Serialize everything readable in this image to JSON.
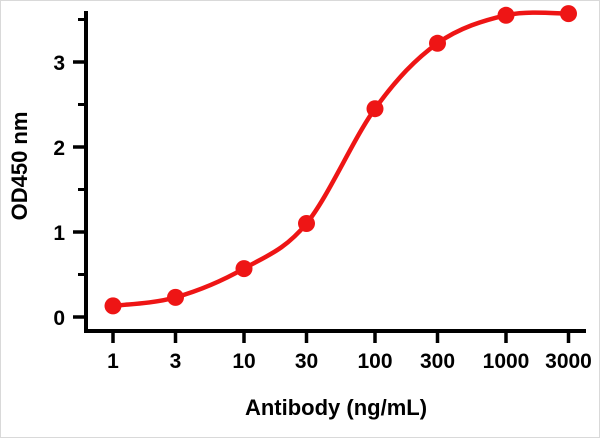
{
  "chart_data": {
    "type": "line",
    "title": "",
    "xlabel": "Antibody (ng/mL)",
    "ylabel": "OD450 nm",
    "x_scale": "log",
    "x": [
      1,
      3,
      10,
      30,
      100,
      300,
      1000,
      3000
    ],
    "series": [
      {
        "name": "OD450",
        "values": [
          0.13,
          0.23,
          0.57,
          1.1,
          2.45,
          3.22,
          3.55,
          3.57
        ]
      }
    ],
    "x_ticks": [
      1,
      3,
      10,
      30,
      100,
      300,
      1000,
      3000
    ],
    "y_ticks": [
      0,
      1,
      2,
      3
    ],
    "y_minor_ticks": [
      0.5,
      1.5,
      2.5,
      3.5
    ],
    "ylim": [
      0,
      3.7
    ],
    "grid": false,
    "legend": "none",
    "marker": "circle",
    "colors": {
      "curve": "#ee1515",
      "marker": "#ee1515",
      "axis": "#000000",
      "background": "#ffffff"
    }
  }
}
